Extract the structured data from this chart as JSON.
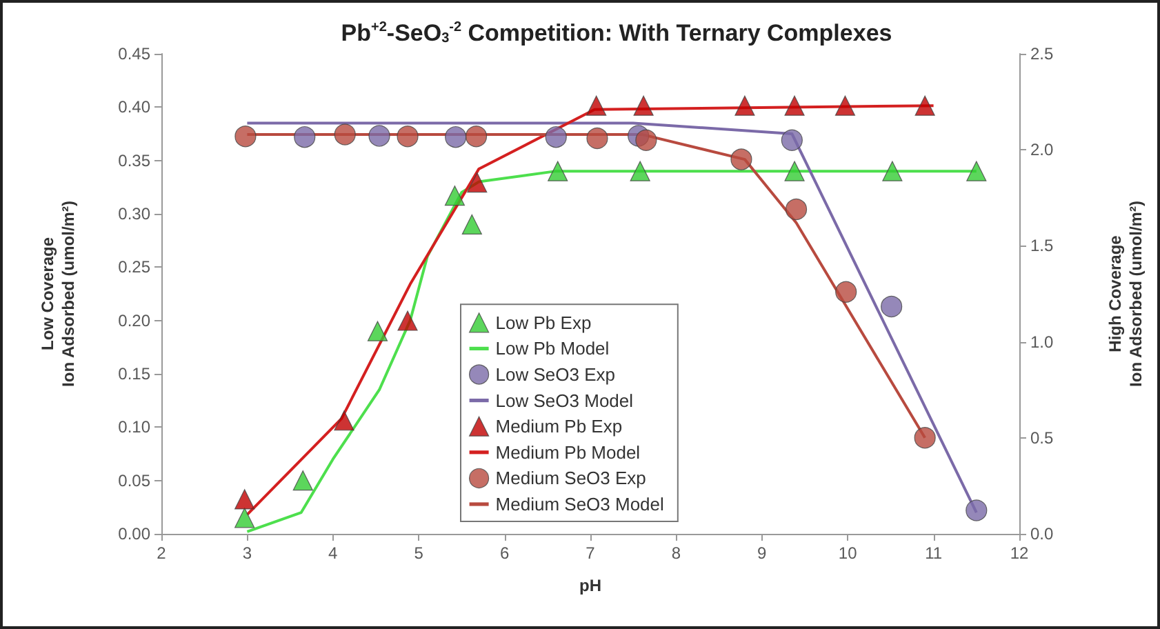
{
  "chart_data": {
    "type": "line",
    "title": "Pb$^{+2}$-SeO$_{3}$$^{-2}$ Competition: With Ternary Complexes",
    "xlabel": "pH",
    "ylabel": "Low Coverage\nIon Adsorbed (umol/m²)",
    "y2label": "High Coverage\nIon Adsorbed (umol/m²)",
    "xlim": [
      2,
      12
    ],
    "xticks": [
      2,
      3,
      4,
      5,
      6,
      7,
      8,
      9,
      10,
      11,
      12
    ],
    "ylim": [
      0,
      0.45
    ],
    "yticks": [
      {
        "value": 0,
        "label": "0.00"
      },
      {
        "value": 0.05,
        "label": "0.05"
      },
      {
        "value": 0.1,
        "label": "0.10"
      },
      {
        "value": 0.15,
        "label": "0.15"
      },
      {
        "value": 0.2,
        "label": "0.20"
      },
      {
        "value": 0.25,
        "label": "0.25"
      },
      {
        "value": 0.3,
        "label": "0.30"
      },
      {
        "value": 0.35,
        "label": "0.35"
      },
      {
        "value": 0.4,
        "label": "0.40"
      },
      {
        "value": 0.45,
        "label": "0.45"
      }
    ],
    "y2lim": [
      0,
      2.5
    ],
    "y2ticks": [
      {
        "value": 0,
        "label": "0.0"
      },
      {
        "value": 0.5,
        "label": "0.5"
      },
      {
        "value": 1,
        "label": "1.0"
      },
      {
        "value": 1.5,
        "label": "1.5"
      },
      {
        "value": 2,
        "label": "2.0"
      },
      {
        "value": 2.5,
        "label": "2.5"
      }
    ],
    "grid": false,
    "legend": "bottom",
    "series": [
      {
        "name": "Low Pb Exp",
        "type": "scatter",
        "marker": "triangle",
        "color": "#33cc33",
        "x": [
          2.97,
          3.65,
          4.52,
          5.42,
          5.62,
          6.62,
          7.58,
          9.38,
          10.52,
          11.5
        ],
        "values": [
          0.015,
          0.05,
          0.19,
          0.317,
          0.29,
          0.34,
          0.34,
          0.34,
          0.34,
          0.34
        ]
      },
      {
        "name": "Low Pb Model",
        "marker": "none",
        "color": "#4ddf4d",
        "x": [
          3.0,
          3.63,
          4.0,
          4.54,
          4.9,
          5.1,
          5.5,
          5.7,
          6.6,
          11.5
        ],
        "values": [
          0.002,
          0.02,
          0.07,
          0.135,
          0.2,
          0.26,
          0.32,
          0.33,
          0.34,
          0.34
        ]
      },
      {
        "name": "Low SeO3 Exp",
        "type": "scatter",
        "marker": "circle",
        "color": "#7b6aa8",
        "x": [
          3.67,
          4.54,
          5.43,
          6.6,
          7.56,
          9.35,
          10.51,
          11.5
        ],
        "values": [
          0.372,
          0.373,
          0.372,
          0.372,
          0.373,
          0.369,
          0.213,
          0.022
        ]
      },
      {
        "name": "Low SeO3 Model",
        "marker": "none",
        "color": "#7b6aa8",
        "x": [
          3.0,
          7.5,
          9.35,
          11.5
        ],
        "values": [
          0.385,
          0.385,
          0.375,
          0.02
        ]
      },
      {
        "name": "Medium Pb Exp",
        "type": "scatter",
        "marker": "triangle",
        "color": "#c00000",
        "axis": "y2",
        "x": [
          2.97,
          4.13,
          4.87,
          5.68,
          7.07,
          7.62,
          8.8,
          9.38,
          9.97,
          10.9
        ],
        "values": [
          0.18,
          0.59,
          1.11,
          1.83,
          2.23,
          2.23,
          2.23,
          2.23,
          2.23,
          2.23
        ]
      },
      {
        "name": "Medium Pb Model",
        "marker": "none",
        "color": "#d42020",
        "axis": "y2",
        "x": [
          3.0,
          4.1,
          4.9,
          5.7,
          7.05,
          11.0
        ],
        "values": [
          0.1,
          0.6,
          1.3,
          1.9,
          2.21,
          2.23
        ]
      },
      {
        "name": "Medium SeO3 Exp",
        "type": "scatter",
        "marker": "circle",
        "color": "#b84a3f",
        "axis": "y2",
        "x": [
          2.98,
          4.14,
          4.87,
          5.67,
          7.08,
          7.65,
          8.76,
          9.4,
          9.98,
          10.9
        ],
        "values": [
          2.07,
          2.08,
          2.07,
          2.07,
          2.06,
          2.05,
          1.95,
          1.69,
          1.26,
          0.5
        ]
      },
      {
        "name": "Medium SeO3 Model",
        "marker": "none",
        "color": "#b84a3f",
        "axis": "y2",
        "x": [
          3.0,
          7.6,
          8.8,
          9.4,
          10.9
        ],
        "values": [
          2.08,
          2.08,
          1.95,
          1.62,
          0.5
        ]
      }
    ]
  }
}
